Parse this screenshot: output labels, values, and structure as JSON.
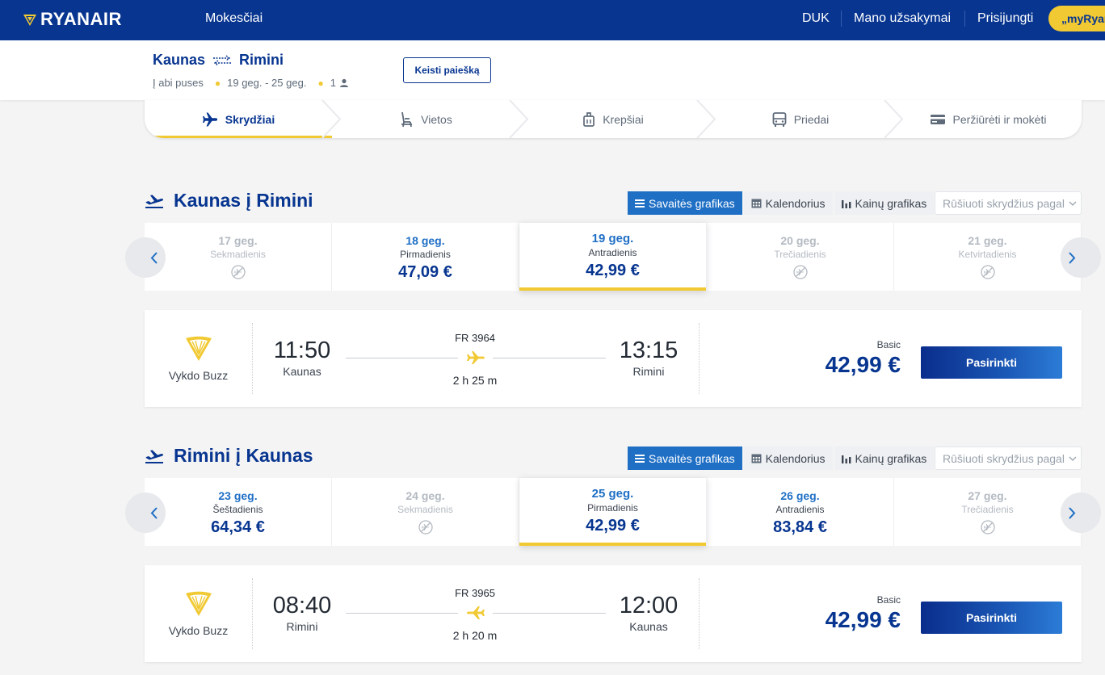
{
  "nav": {
    "logo": "RYANAIR",
    "fees": "Mokesčiai",
    "faq": "DUK",
    "bookings": "Mano užsakymai",
    "login": "Prisijungti",
    "myryanair": "„myRyanair"
  },
  "search": {
    "origin": "Kaunas",
    "destination": "Rimini",
    "trip_type": "Į abi puses",
    "dates": "19 geg. - 25 geg.",
    "passengers": "1",
    "change_label": "Keisti paiešką"
  },
  "steps": [
    {
      "label": "Skrydžiai",
      "icon": "plane-icon"
    },
    {
      "label": "Vietos",
      "icon": "seat-icon"
    },
    {
      "label": "Krepšiai",
      "icon": "bag-icon"
    },
    {
      "label": "Priedai",
      "icon": "bus-icon"
    },
    {
      "label": "Peržiūrėti ir mokėti",
      "icon": "card-icon"
    }
  ],
  "view_options": {
    "weekly": "Savaitės grafikas",
    "calendar": "Kalendorius",
    "price_chart": "Kainų grafikas",
    "sort_placeholder": "Rūšiuoti skrydžius pagal"
  },
  "outbound": {
    "title": "Kaunas į Rimini",
    "days": [
      {
        "date": "17 geg.",
        "weekday": "Sekmadienis",
        "price": null
      },
      {
        "date": "18 geg.",
        "weekday": "Pirmadienis",
        "price": "47,09 €"
      },
      {
        "date": "19 geg.",
        "weekday": "Antradienis",
        "price": "42,99 €",
        "selected": true
      },
      {
        "date": "20 geg.",
        "weekday": "Trečiadienis",
        "price": null
      },
      {
        "date": "21 geg.",
        "weekday": "Ketvirtadienis",
        "price": null
      }
    ],
    "flight": {
      "operator": "Vykdo Buzz",
      "dep_time": "11:50",
      "dep_city": "Kaunas",
      "flight_no": "FR 3964",
      "duration": "2 h 25 m",
      "arr_time": "13:15",
      "arr_city": "Rimini",
      "fare": "Basic",
      "price": "42,99 €",
      "select_label": "Pasirinkti"
    }
  },
  "inbound": {
    "title": "Rimini į Kaunas",
    "days": [
      {
        "date": "23 geg.",
        "weekday": "Šeštadienis",
        "price": "64,34 €"
      },
      {
        "date": "24 geg.",
        "weekday": "Sekmadienis",
        "price": null
      },
      {
        "date": "25 geg.",
        "weekday": "Pirmadienis",
        "price": "42,99 €",
        "selected": true
      },
      {
        "date": "26 geg.",
        "weekday": "Antradienis",
        "price": "83,84 €"
      },
      {
        "date": "27 geg.",
        "weekday": "Trečiadienis",
        "price": null
      }
    ],
    "flight": {
      "operator": "Vykdo Buzz",
      "dep_time": "08:40",
      "dep_city": "Rimini",
      "flight_no": "FR 3965",
      "duration": "2 h 20 m",
      "arr_time": "12:00",
      "arr_city": "Kaunas",
      "fare": "Basic",
      "price": "42,99 €",
      "select_label": "Pasirinkti"
    }
  },
  "colors": {
    "brand_blue": "#073590",
    "accent_yellow": "#f1c933",
    "link_blue": "#1f6fc5"
  }
}
